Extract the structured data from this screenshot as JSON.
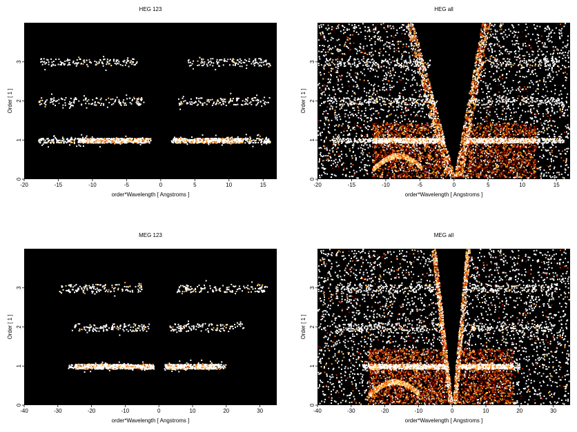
{
  "figure": {
    "panels": [
      {
        "id": "heg-123",
        "title": "HEG 123"
      },
      {
        "id": "heg-all",
        "title": "HEG all"
      },
      {
        "id": "meg-123",
        "title": "MEG 123"
      },
      {
        "id": "meg-all",
        "title": "MEG all"
      }
    ]
  },
  "chart_data": [
    {
      "type": "heatmap",
      "title": "HEG 123",
      "xlabel": "order*Wavelength [ Angstroms ]",
      "ylabel": "Order [ 1 ]",
      "xlim": [
        -20,
        17
      ],
      "ylim": [
        0,
        4
      ],
      "xticks": [
        -20,
        -15,
        -10,
        -5,
        0,
        5,
        10,
        15
      ],
      "yticks": [
        0,
        1,
        2,
        3
      ],
      "colormap": "black-red-yellow-white",
      "bands": [
        {
          "order": 1,
          "x_ranges": [
            [
              -18,
              -1.5
            ],
            [
              1.5,
              16
            ]
          ],
          "bright_core": [
            [
              -12,
              -2
            ],
            [
              2,
              12
            ]
          ]
        },
        {
          "order": 2,
          "x_ranges": [
            [
              -18,
              -2.5
            ],
            [
              2.5,
              16
            ]
          ]
        },
        {
          "order": 3,
          "x_ranges": [
            [
              -18,
              -3.5
            ],
            [
              3.5,
              16
            ]
          ]
        }
      ]
    },
    {
      "type": "heatmap",
      "title": "HEG all",
      "xlabel": "order*Wavelength [ Angstroms ]",
      "ylabel": "Order [ 1 ]",
      "xlim": [
        -20,
        17
      ],
      "ylim": [
        0,
        4
      ],
      "xticks": [
        -20,
        -15,
        -10,
        -5,
        0,
        5,
        10,
        15
      ],
      "yticks": [
        0,
        1,
        2,
        3
      ],
      "colormap": "black-red-yellow-white",
      "bands": [
        {
          "order": 1,
          "x_ranges": [
            [
              -18,
              -1.5
            ],
            [
              1.5,
              16
            ]
          ],
          "bright_core": [
            [
              -12,
              -2
            ],
            [
              2,
              12
            ]
          ]
        },
        {
          "order": 2,
          "x_ranges": [
            [
              -19,
              -2.5
            ],
            [
              2.5,
              16
            ]
          ]
        },
        {
          "order": 3,
          "x_ranges": [
            [
              -19,
              -3.5
            ],
            [
              3.5,
              16
            ]
          ]
        }
      ],
      "background_scatter": true,
      "empty_wedge": {
        "apex_x": 0,
        "apex_y": 0.1,
        "top_left_x": -6,
        "top_right_x": 4,
        "top_y": 4
      }
    },
    {
      "type": "heatmap",
      "title": "MEG 123",
      "xlabel": "order*Wavelength [ Angstroms ]",
      "ylabel": "Order [ 1 ]",
      "xlim": [
        -40,
        35
      ],
      "ylim": [
        0,
        4
      ],
      "xticks": [
        -40,
        -30,
        -20,
        -10,
        0,
        10,
        20,
        30
      ],
      "yticks": [
        0,
        1,
        2,
        3
      ],
      "colormap": "black-red-yellow-white",
      "bands": [
        {
          "order": 1,
          "x_ranges": [
            [
              -27,
              -1.5
            ],
            [
              1.5,
              20
            ]
          ],
          "bright_core": [
            [
              -25,
              -2
            ],
            [
              2,
              18
            ]
          ]
        },
        {
          "order": 2,
          "x_ranges": [
            [
              -26,
              -3
            ],
            [
              3,
              25
            ]
          ]
        },
        {
          "order": 3,
          "x_ranges": [
            [
              -30,
              -5
            ],
            [
              5,
              32
            ]
          ]
        }
      ]
    },
    {
      "type": "heatmap",
      "title": "MEG all",
      "xlabel": "order*Wavelength [ Angstroms ]",
      "ylabel": "Order [ 1 ]",
      "xlim": [
        -40,
        35
      ],
      "ylim": [
        0,
        4
      ],
      "xticks": [
        -40,
        -30,
        -20,
        -10,
        0,
        10,
        20,
        30
      ],
      "yticks": [
        0,
        1,
        2,
        3
      ],
      "colormap": "black-red-yellow-white",
      "bands": [
        {
          "order": 1,
          "x_ranges": [
            [
              -27,
              -1.5
            ],
            [
              1.5,
              20
            ]
          ],
          "bright_core": [
            [
              -25,
              -2
            ],
            [
              2,
              18
            ]
          ]
        },
        {
          "order": 2,
          "x_ranges": [
            [
              -35,
              -3
            ],
            [
              3,
              30
            ]
          ]
        },
        {
          "order": 3,
          "x_ranges": [
            [
              -35,
              -5
            ],
            [
              5,
              32
            ]
          ]
        }
      ],
      "background_scatter": true,
      "empty_wedge": {
        "apex_x": 0,
        "apex_y": 0.05,
        "top_left_x": -5,
        "top_right_x": 4,
        "top_y": 4
      }
    }
  ]
}
